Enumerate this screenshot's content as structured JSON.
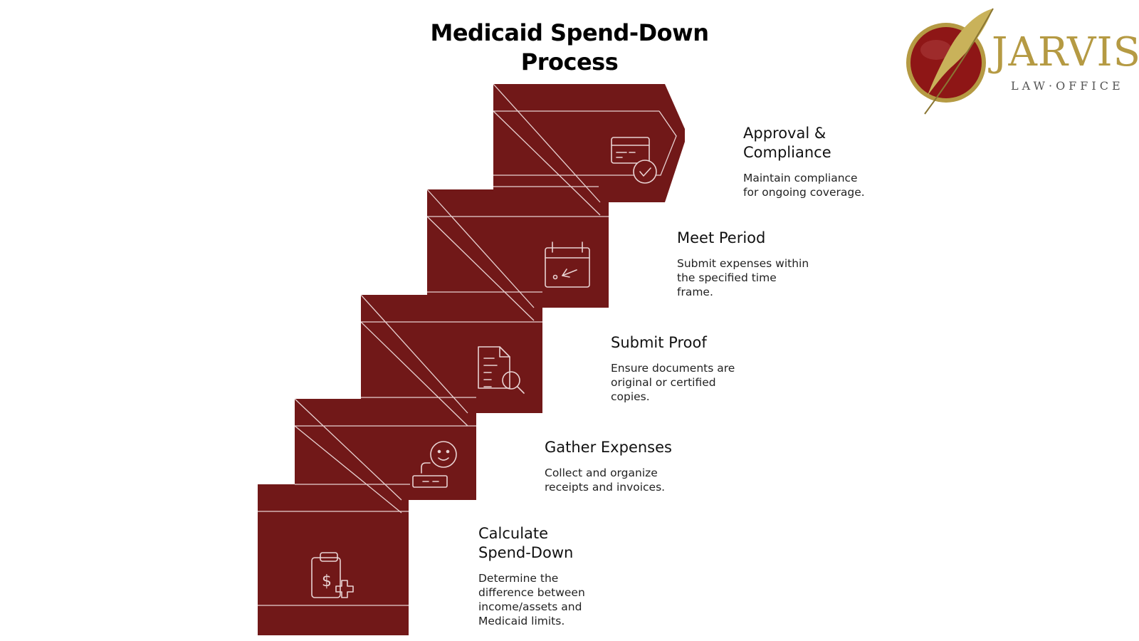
{
  "title": {
    "line1": "Medicaid Spend-Down",
    "line2": "Process"
  },
  "logo": {
    "name": "JARVIS",
    "subtitle": "LAW·OFFICE"
  },
  "colors": {
    "block": "#711818",
    "line": "#e8d2d2",
    "logo_gold": "#b59a43",
    "logo_red": "#8e1616"
  },
  "steps": [
    {
      "title": "Calculate\nSpend-Down",
      "description": "Determine the\ndifference between\nincome/assets and\nMedicaid limits.",
      "icon": "clipboard-dollar-icon"
    },
    {
      "title": "Gather Expenses",
      "description": "Collect and organize\nreceipts and invoices.",
      "icon": "person-receipt-icon"
    },
    {
      "title": "Submit Proof",
      "description": "Ensure documents are\noriginal or certified\ncopies.",
      "icon": "document-search-icon"
    },
    {
      "title": "Meet Period",
      "description": "Submit expenses within\nthe specified time\nframe.",
      "icon": "calendar-check-icon"
    },
    {
      "title": "Approval &\nCompliance",
      "description": "Maintain compliance\nfor ongoing coverage.",
      "icon": "card-check-icon"
    }
  ]
}
